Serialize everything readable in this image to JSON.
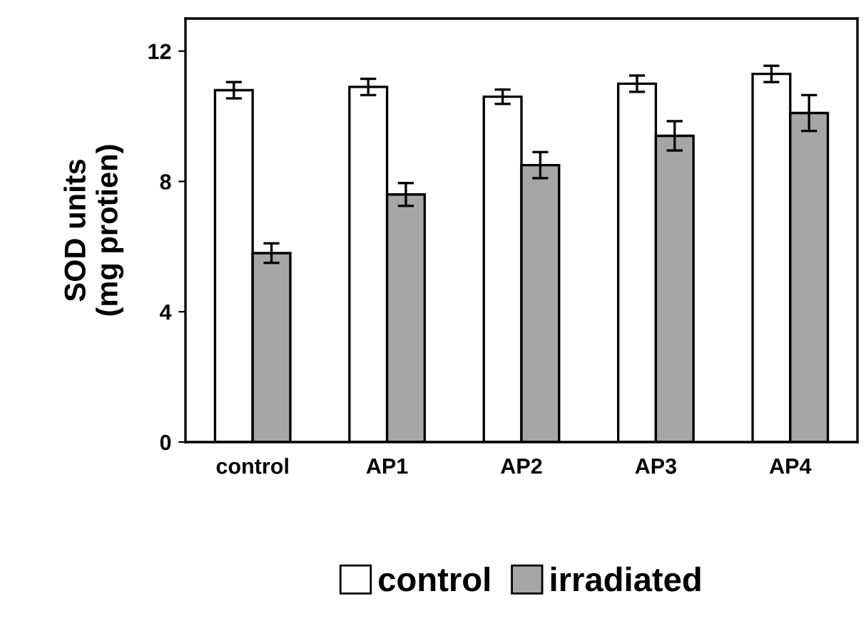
{
  "chart_data": {
    "type": "bar",
    "ylabel": "SOD units\n(mg protien)",
    "categories": [
      "control",
      "AP1",
      "AP2",
      "AP3",
      "AP4"
    ],
    "series": [
      {
        "name": "control",
        "color": "#ffffff",
        "values": [
          10.8,
          10.9,
          10.6,
          11.0,
          11.3
        ],
        "errors": [
          0.25,
          0.25,
          0.22,
          0.25,
          0.25
        ]
      },
      {
        "name": "irradiated",
        "color": "#a6a6a6",
        "values": [
          5.8,
          7.6,
          8.5,
          9.4,
          10.1
        ],
        "errors": [
          0.3,
          0.35,
          0.4,
          0.45,
          0.55
        ]
      }
    ],
    "ylim": [
      0,
      13
    ],
    "yticks": [
      0,
      4,
      8,
      12
    ],
    "grid": false,
    "legend": "bottom"
  }
}
